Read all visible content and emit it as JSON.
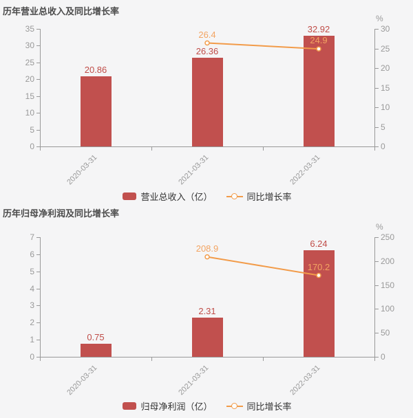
{
  "colors": {
    "background": "#f5f5f6",
    "bar": "#c1504e",
    "bar_label": "#bf4c47",
    "line": "#f29b49",
    "line_label": "#f3a462",
    "axis_line": "#999999",
    "axis_text": "#999999",
    "title_text": "#4c4c4c",
    "legend_text": "#333333"
  },
  "chart_data": [
    {
      "type": "bar-line-combo",
      "title": "历年营业总收入及同比增长率",
      "categories": [
        "2020-03-31",
        "2021-03-31",
        "2022-03-31"
      ],
      "series": [
        {
          "name": "营业总收入（亿）",
          "type": "bar",
          "yaxis": "left",
          "values": [
            20.86,
            26.36,
            32.92
          ]
        },
        {
          "name": "同比增长率",
          "type": "line",
          "yaxis": "right",
          "values": [
            null,
            26.4,
            24.9
          ]
        }
      ],
      "left_axis": {
        "min": 0,
        "max": 35,
        "step": 5,
        "unit": ""
      },
      "right_axis": {
        "min": 0,
        "max": 30,
        "step": 5,
        "unit": "%"
      },
      "legend_position": "bottom",
      "grid_lines": false
    },
    {
      "type": "bar-line-combo",
      "title": "历年归母净利润及同比增长率",
      "categories": [
        "2020-03-31",
        "2021-03-31",
        "2022-03-31"
      ],
      "series": [
        {
          "name": "归母净利润（亿）",
          "type": "bar",
          "yaxis": "left",
          "values": [
            0.75,
            2.31,
            6.24
          ]
        },
        {
          "name": "同比增长率",
          "type": "line",
          "yaxis": "right",
          "values": [
            null,
            208.9,
            170.2
          ]
        }
      ],
      "left_axis": {
        "min": 0,
        "max": 7,
        "step": 1,
        "unit": ""
      },
      "right_axis": {
        "min": 0,
        "max": 250,
        "step": 50,
        "unit": "%"
      },
      "legend_position": "bottom",
      "grid_lines": false
    }
  ]
}
